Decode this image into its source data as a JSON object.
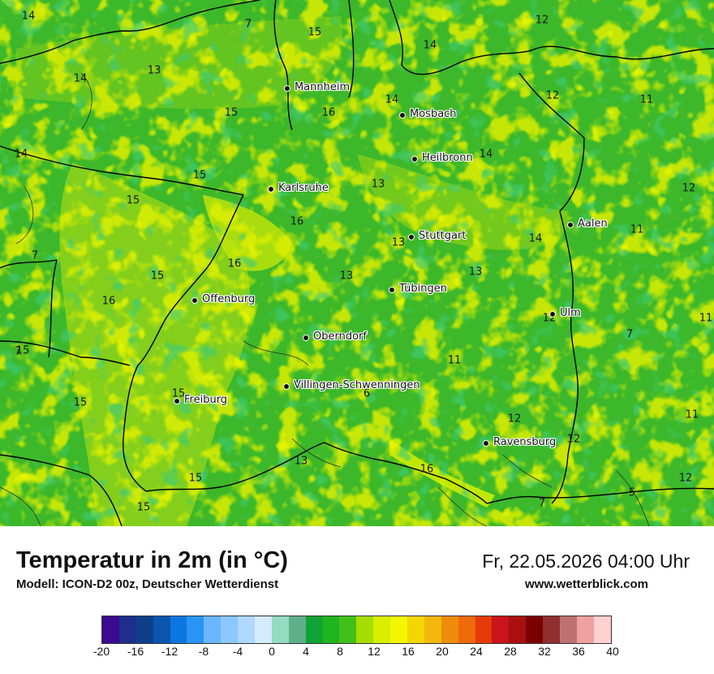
{
  "title": "Temperatur in 2m (in °C)",
  "subtitle": "Modell: ICON-D2 00z, Deutscher Wetterdienst",
  "datetime": "Fr, 22.05.2026 04:00 Uhr",
  "website": "www.wetterblick.com",
  "cities": [
    {
      "name": "Mannheim"
    },
    {
      "name": "Mosbach"
    },
    {
      "name": "Heilbronn"
    },
    {
      "name": "Karlsruhe"
    },
    {
      "name": "Stuttgart"
    },
    {
      "name": "Aalen"
    },
    {
      "name": "Tübingen"
    },
    {
      "name": "Offenburg"
    },
    {
      "name": "Ulm"
    },
    {
      "name": "Oberndorf"
    },
    {
      "name": "Villingen-Schwenningen"
    },
    {
      "name": "Freiburg"
    },
    {
      "name": "Ravensburg"
    }
  ],
  "temperature_labels": [
    "14",
    "7",
    "15",
    "14",
    "12",
    "14",
    "13",
    "14",
    "12",
    "11",
    "15",
    "16",
    "14",
    "14",
    "15",
    "13",
    "12",
    "15",
    "16",
    "13",
    "11",
    "7",
    "16",
    "13",
    "14",
    "15",
    "13",
    "16",
    "15",
    "7",
    "12",
    "11",
    "7",
    "11",
    "15",
    "11",
    "6",
    "15",
    "12",
    "11",
    "12",
    "13",
    "16",
    "15",
    "12",
    "5",
    "15",
    "7"
  ],
  "legend": {
    "colors": [
      "#3b0a8f",
      "#1f2d8c",
      "#0f3f8a",
      "#0a55b0",
      "#0a78e0",
      "#2b95f5",
      "#6bb6ff",
      "#8cc7ff",
      "#b0d8ff",
      "#d6ebff",
      "#93dcc0",
      "#5fb08a",
      "#10a335",
      "#1fb51f",
      "#3fc11a",
      "#a6dd00",
      "#d8ef00",
      "#f2f700",
      "#f4d600",
      "#f2b90c",
      "#f08c0c",
      "#ef6a0a",
      "#e63a0a",
      "#c8141a",
      "#aa0f0f",
      "#7a0000",
      "#8f2f2f",
      "#c07070",
      "#f0a0a0",
      "#ffd0d0"
    ],
    "ticks": [
      "-20",
      "-16",
      "-12",
      "-8",
      "-4",
      "0",
      "4",
      "8",
      "12",
      "16",
      "20",
      "24",
      "28",
      "32",
      "36",
      "40"
    ]
  }
}
